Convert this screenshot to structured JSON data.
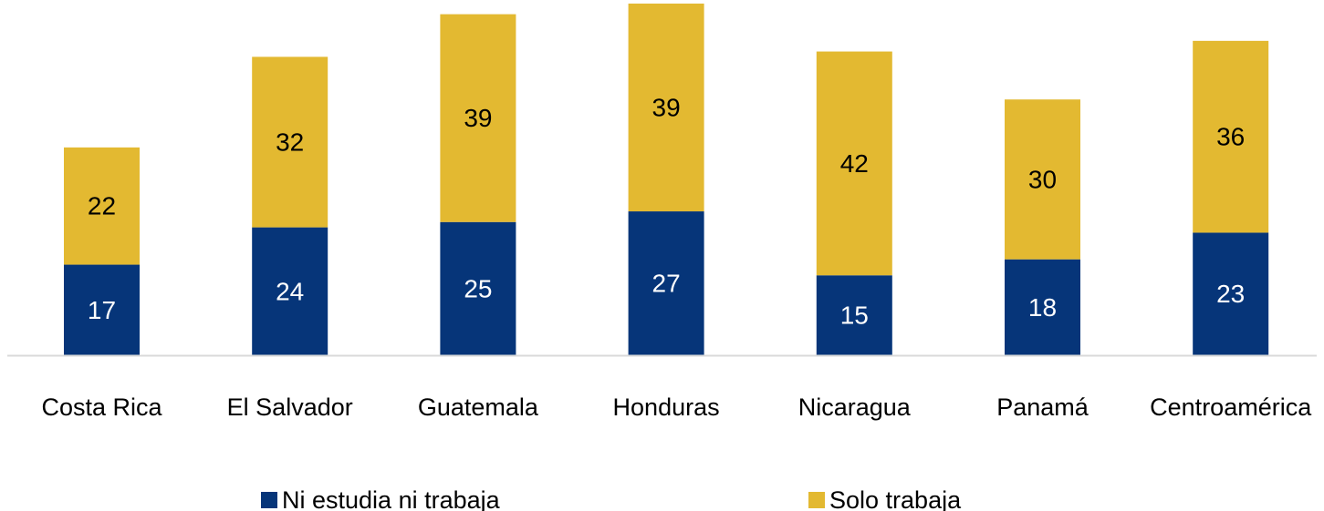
{
  "chart_data": {
    "type": "bar",
    "stacked": true,
    "categories": [
      "Costa Rica",
      "El Salvador",
      "Guatemala",
      "Honduras",
      "Nicaragua",
      "Panamá",
      "Centroamérica"
    ],
    "series": [
      {
        "name": "Ni estudia ni trabaja",
        "color": "#063579",
        "label_color": "#ffffff",
        "values": [
          17,
          24,
          25,
          27,
          15,
          18,
          23
        ]
      },
      {
        "name": "Solo trabaja",
        "color": "#E3B931",
        "label_color": "#000000",
        "values": [
          22,
          32,
          39,
          39,
          42,
          30,
          36
        ]
      }
    ],
    "data_labels": true,
    "ylim": [
      0,
      67
    ],
    "y_axis_visible": false,
    "grid": false,
    "legend_position": "bottom",
    "axis_line_color": "#D9D9D9"
  }
}
